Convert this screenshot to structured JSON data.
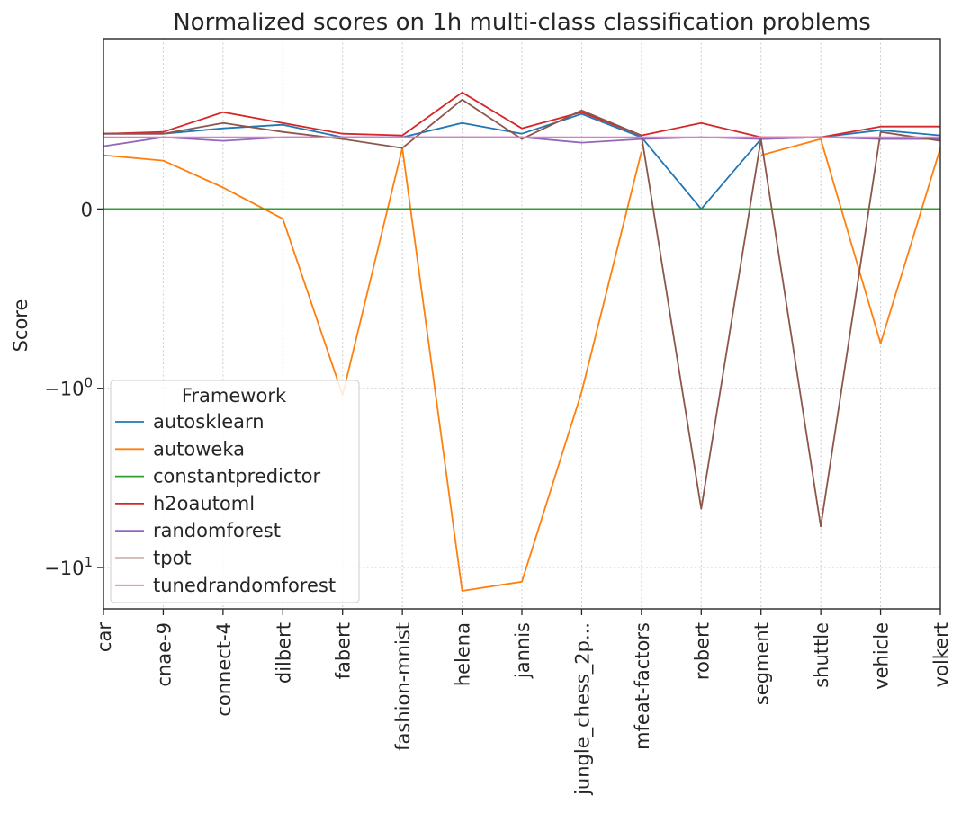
{
  "chart_data": {
    "type": "line",
    "title": "Normalized scores on 1h multi-class classification problems",
    "xlabel": "",
    "ylabel": "Score",
    "yscale": "symlog",
    "ylim": [
      -17,
      0.95
    ],
    "grid": true,
    "legend_title": "Framework",
    "legend_position": "lower-left",
    "categories": [
      "car",
      "cnae-9",
      "connect-4",
      "dilbert",
      "fabert",
      "fashion-mnist",
      "helena",
      "jannis",
      "jungle_chess_2p...",
      "mfeat-factors",
      "robert",
      "segment",
      "shuttle",
      "vehicle",
      "volkert"
    ],
    "yticks": [
      {
        "value": 0,
        "label": "0"
      },
      {
        "value": -1,
        "label": "−10",
        "exp": "0"
      },
      {
        "value": -10,
        "label": "−10",
        "exp": "1"
      }
    ],
    "series": [
      {
        "name": "autosklearn",
        "color": "#1f77b4",
        "values": [
          0.42,
          0.42,
          0.45,
          0.47,
          0.4,
          0.4,
          0.48,
          0.42,
          0.53,
          0.4,
          0.0,
          0.39,
          0.4,
          0.44,
          0.41
        ]
      },
      {
        "name": "autoweka",
        "color": "#ff7f0e",
        "values": [
          0.3,
          0.27,
          0.12,
          -0.055,
          -1.09,
          0.34,
          -13.5,
          -12.0,
          -1.05,
          0.32,
          null,
          0.3,
          0.39,
          -0.75,
          0.34
        ]
      },
      {
        "name": "constantpredictor",
        "color": "#2ca02c",
        "values": [
          0,
          0,
          0,
          0,
          0,
          0,
          0,
          0,
          0,
          0,
          0,
          0,
          0,
          0,
          0
        ]
      },
      {
        "name": "h2oautoml",
        "color": "#d62728",
        "values": [
          0.42,
          0.43,
          0.54,
          0.48,
          0.42,
          0.41,
          0.65,
          0.45,
          0.54,
          0.41,
          0.48,
          0.4,
          0.4,
          0.46,
          0.46
        ]
      },
      {
        "name": "randomforest",
        "color": "#9467bd",
        "values": [
          0.35,
          0.4,
          0.38,
          0.4,
          0.4,
          0.4,
          0.4,
          0.4,
          0.37,
          0.39,
          0.4,
          0.39,
          0.4,
          0.39,
          0.39
        ]
      },
      {
        "name": "tpot",
        "color": "#8c564b",
        "values": [
          0.42,
          0.42,
          0.48,
          0.43,
          0.39,
          0.34,
          0.61,
          0.39,
          0.55,
          0.41,
          -4.7,
          0.39,
          -5.9,
          0.43,
          0.38
        ]
      },
      {
        "name": "tunedrandomforest",
        "color": "#e377c2",
        "values": [
          0.4,
          0.4,
          0.4,
          0.4,
          0.4,
          0.4,
          0.4,
          0.4,
          0.4,
          0.4,
          0.4,
          0.4,
          0.4,
          0.4,
          0.4
        ]
      }
    ]
  }
}
